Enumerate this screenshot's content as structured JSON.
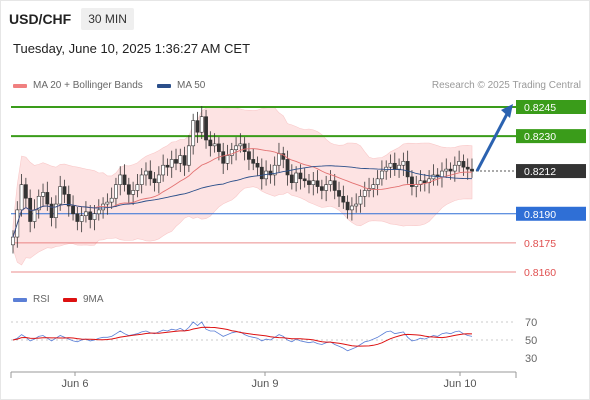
{
  "header": {
    "symbol": "USD/CHF",
    "timeframe": "30 MIN",
    "timestamp": "Tuesday, June 10, 2025 1:36:27 AM CET"
  },
  "legend": {
    "ma20_label": "MA 20 + Bollinger Bands",
    "ma20_color": "#f08080",
    "ma50_label": "MA 50",
    "ma50_color": "#2b4f8a",
    "credit": "Research © 2025 Trading Central"
  },
  "rsi_legend": {
    "rsi_label": "RSI",
    "rsi_color": "#5b7fd6",
    "ma9_label": "9MA",
    "ma9_color": "#dd1111"
  },
  "chart_data": {
    "type": "candlestick",
    "x_ticks": [
      "Jun 6",
      "Jun 9",
      "Jun 10"
    ],
    "last_price": "0.8212",
    "levels": [
      {
        "value": "0.8245",
        "kind": "target",
        "color": "#3a9c1a"
      },
      {
        "value": "0.8230",
        "kind": "target",
        "color": "#3a9c1a"
      },
      {
        "value": "0.8212",
        "kind": "last",
        "color": "#333333"
      },
      {
        "value": "0.8190",
        "kind": "pivot",
        "color": "#2f6fd6"
      },
      {
        "value": "0.8175",
        "kind": "support",
        "color": "#e05050"
      },
      {
        "value": "0.8160",
        "kind": "support",
        "color": "#e05050"
      }
    ],
    "rsi_ticks": [
      "70",
      "50",
      "30"
    ],
    "closes": [
      0.8178,
      0.8192,
      0.8205,
      0.8198,
      0.8186,
      0.8192,
      0.8199,
      0.8201,
      0.8195,
      0.8188,
      0.8195,
      0.8204,
      0.82,
      0.8194,
      0.819,
      0.8186,
      0.8189,
      0.8191,
      0.8187,
      0.819,
      0.8192,
      0.8195,
      0.8196,
      0.8198,
      0.8205,
      0.821,
      0.8205,
      0.82,
      0.8202,
      0.8205,
      0.821,
      0.8212,
      0.8208,
      0.8206,
      0.821,
      0.8215,
      0.8214,
      0.8218,
      0.8216,
      0.822,
      0.8215,
      0.8225,
      0.8238,
      0.8232,
      0.824,
      0.8228,
      0.8225,
      0.8226,
      0.8222,
      0.8216,
      0.822,
      0.8223,
      0.8225,
      0.8226,
      0.8222,
      0.8218,
      0.8216,
      0.8214,
      0.8208,
      0.8212,
      0.821,
      0.8215,
      0.8221,
      0.8218,
      0.821,
      0.8206,
      0.8211,
      0.8208,
      0.8207,
      0.8205,
      0.8207,
      0.8204,
      0.8202,
      0.8205,
      0.8207,
      0.8202,
      0.8199,
      0.8196,
      0.8192,
      0.8194,
      0.8195,
      0.8199,
      0.8202,
      0.8203,
      0.8205,
      0.8208,
      0.8212,
      0.8214,
      0.8216,
      0.8213,
      0.8215,
      0.8217,
      0.8209,
      0.8204,
      0.8205,
      0.8207,
      0.8206,
      0.8208,
      0.821,
      0.8209,
      0.8212,
      0.8213,
      0.8212,
      0.8215,
      0.8217,
      0.8214,
      0.8213,
      0.8212
    ],
    "rsi": [
      50,
      52,
      56,
      53,
      49,
      51,
      54,
      55,
      52,
      49,
      52,
      55,
      53,
      51,
      49,
      48,
      50,
      51,
      49,
      50,
      52,
      53,
      53,
      54,
      57,
      60,
      57,
      55,
      56,
      57,
      59,
      60,
      58,
      57,
      59,
      61,
      60,
      62,
      61,
      63,
      60,
      64,
      70,
      66,
      70,
      62,
      60,
      60,
      57,
      54,
      56,
      58,
      59,
      59,
      56,
      54,
      53,
      52,
      49,
      51,
      50,
      53,
      56,
      54,
      50,
      48,
      51,
      49,
      48,
      47,
      48,
      46,
      45,
      47,
      48,
      45,
      43,
      41,
      38,
      40,
      42,
      45,
      48,
      49,
      51,
      53,
      56,
      59,
      60,
      57,
      58,
      59,
      53,
      49,
      50,
      52,
      51,
      53,
      55,
      54,
      57,
      58,
      57,
      59,
      60,
      57,
      55,
      54
    ]
  }
}
